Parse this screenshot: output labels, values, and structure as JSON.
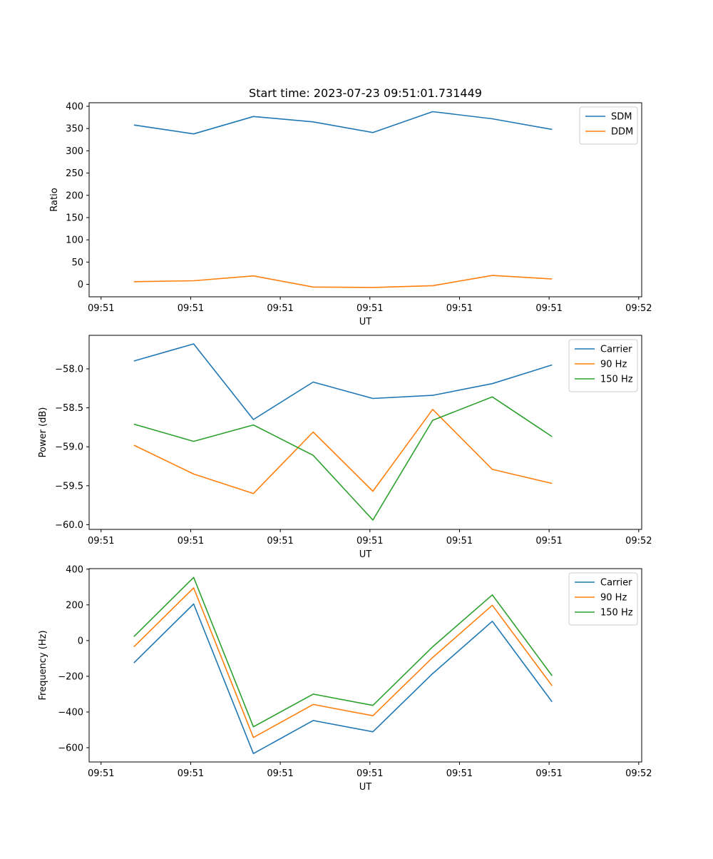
{
  "colors": {
    "blue": "#1f77b4",
    "orange": "#ff7f0e",
    "green": "#2ca02c"
  },
  "title": "Start time: 2023-07-23 09:51:01.731449",
  "chart_data": [
    {
      "type": "line",
      "xlabel": "UT",
      "ylabel": "Ratio",
      "x_index": [
        1,
        2,
        3,
        4,
        5,
        6,
        7,
        8
      ],
      "xlim": [
        0.25,
        9.5
      ],
      "x_ticks": [
        0.45,
        1.95,
        3.45,
        4.95,
        6.45,
        7.95,
        9.45
      ],
      "x_tick_labels": [
        "09:51",
        "09:51",
        "09:51",
        "09:51",
        "09:51",
        "09:51",
        "09:52"
      ],
      "ylim": [
        -28,
        408
      ],
      "y_ticks": [
        0,
        50,
        100,
        150,
        200,
        250,
        300,
        350,
        400
      ],
      "y_tick_labels": [
        "0",
        "50",
        "100",
        "150",
        "200",
        "250",
        "300",
        "350",
        "400"
      ],
      "legend": "top-right",
      "series": [
        {
          "name": "SDM",
          "color": "blue",
          "values": [
            358,
            338,
            377,
            365,
            341,
            388,
            372,
            348
          ]
        },
        {
          "name": "DDM",
          "color": "orange",
          "values": [
            6,
            8,
            19,
            -6,
            -7,
            -3,
            20,
            12
          ]
        }
      ]
    },
    {
      "type": "line",
      "xlabel": "UT",
      "ylabel": "Power (dB)",
      "x_index": [
        1,
        2,
        3,
        4,
        5,
        6,
        7,
        8
      ],
      "xlim": [
        0.25,
        9.5
      ],
      "x_ticks": [
        0.45,
        1.95,
        3.45,
        4.95,
        6.45,
        7.95,
        9.45
      ],
      "x_tick_labels": [
        "09:51",
        "09:51",
        "09:51",
        "09:51",
        "09:51",
        "09:51",
        "09:52"
      ],
      "ylim": [
        -60.06,
        -57.57
      ],
      "y_ticks": [
        -60.0,
        -59.5,
        -59.0,
        -58.5,
        -58.0
      ],
      "y_tick_labels": [
        "−60.0",
        "−59.5",
        "−59.0",
        "−58.5",
        "−58.0"
      ],
      "legend": "top-right",
      "series": [
        {
          "name": "Carrier",
          "color": "blue",
          "values": [
            -57.9,
            -57.68,
            -58.65,
            -58.17,
            -58.38,
            -58.34,
            -58.19,
            -57.95
          ]
        },
        {
          "name": "90 Hz",
          "color": "orange",
          "values": [
            -58.98,
            -59.35,
            -59.6,
            -58.81,
            -59.57,
            -58.52,
            -59.29,
            -59.47
          ]
        },
        {
          "name": "150 Hz",
          "color": "green",
          "values": [
            -58.71,
            -58.93,
            -58.72,
            -59.11,
            -59.94,
            -58.66,
            -58.36,
            -58.87
          ]
        }
      ]
    },
    {
      "type": "line",
      "xlabel": "UT",
      "ylabel": "Frequency (Hz)",
      "x_index": [
        1,
        2,
        3,
        4,
        5,
        6,
        7,
        8
      ],
      "xlim": [
        0.25,
        9.5
      ],
      "x_ticks": [
        0.45,
        1.95,
        3.45,
        4.95,
        6.45,
        7.95,
        9.45
      ],
      "x_tick_labels": [
        "09:51",
        "09:51",
        "09:51",
        "09:51",
        "09:51",
        "09:51",
        "09:52"
      ],
      "ylim": [
        -680,
        403
      ],
      "y_ticks": [
        -600,
        -400,
        -200,
        0,
        200,
        400
      ],
      "y_tick_labels": [
        "−600",
        "−400",
        "−200",
        "0",
        "200",
        "400"
      ],
      "legend": "top-right",
      "series": [
        {
          "name": "Carrier",
          "color": "blue",
          "values": [
            -125,
            205,
            -633,
            -448,
            -511,
            -185,
            108,
            -343
          ]
        },
        {
          "name": "90 Hz",
          "color": "orange",
          "values": [
            -35,
            295,
            -543,
            -358,
            -421,
            -95,
            198,
            -253
          ]
        },
        {
          "name": "150 Hz",
          "color": "green",
          "values": [
            22,
            354,
            -483,
            -300,
            -363,
            -35,
            256,
            -197
          ]
        }
      ]
    }
  ]
}
